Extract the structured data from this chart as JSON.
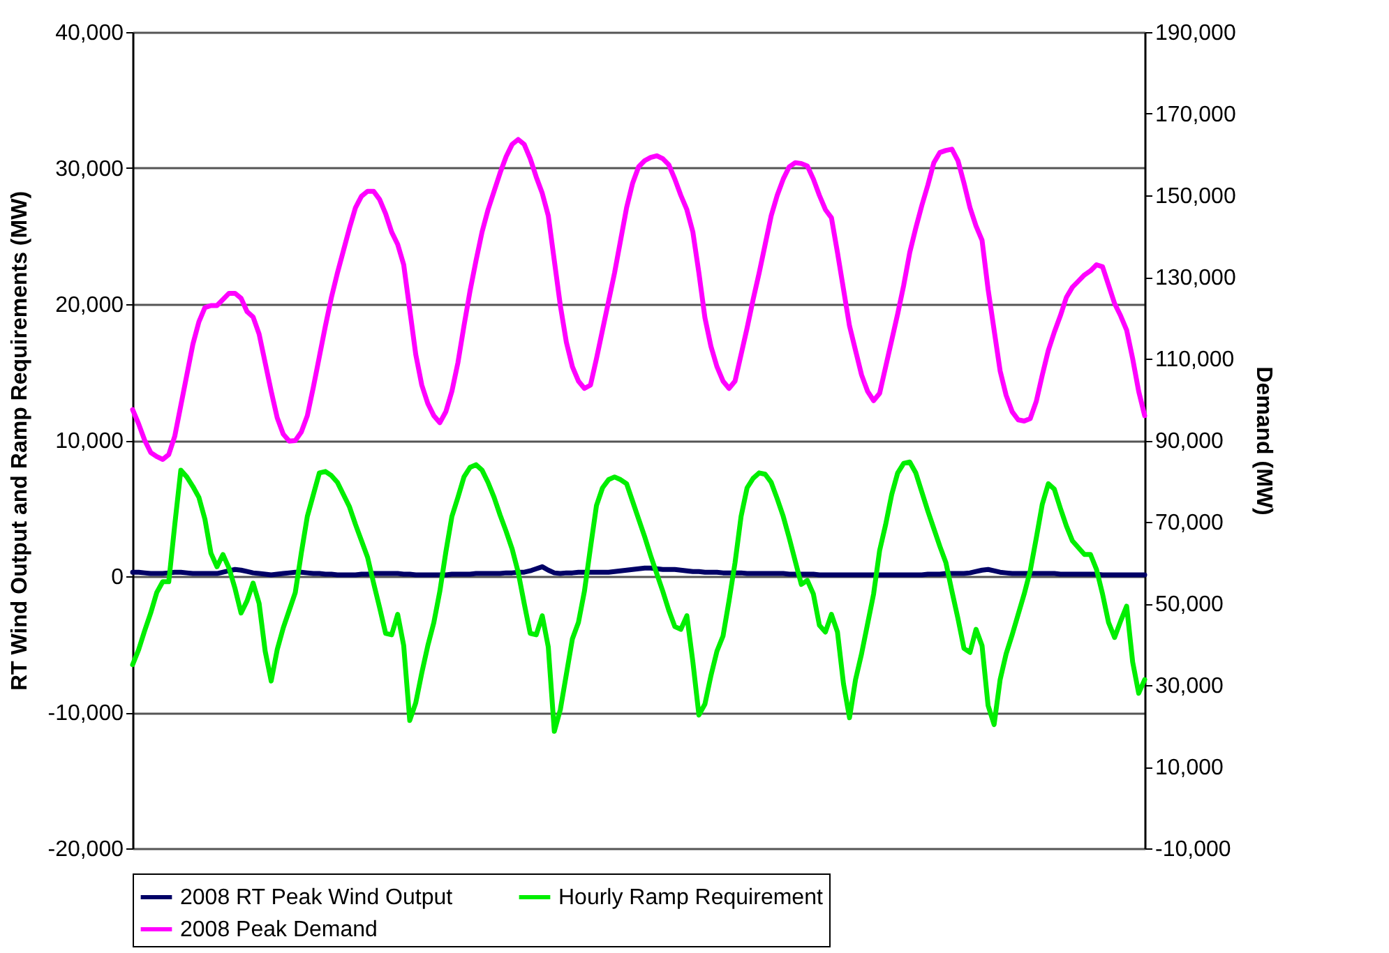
{
  "chart_data": {
    "type": "line",
    "ylabel": "RT Wind Output and Ramp Requirements (MW)",
    "y2label": "Demand (MW)",
    "categories": [
      null,
      null,
      null,
      null,
      null,
      null,
      null,
      null,
      null,
      null,
      null,
      null,
      null,
      null,
      null,
      null,
      null,
      null,
      null,
      null,
      null,
      null,
      null,
      null,
      null,
      null,
      null,
      null,
      null,
      null,
      null,
      null,
      null,
      null,
      null,
      null,
      null,
      null,
      null,
      null,
      null,
      null,
      null,
      null,
      null,
      null,
      null,
      null,
      null,
      null,
      null,
      null,
      null,
      null,
      null,
      null,
      null,
      null,
      null,
      null,
      null,
      null,
      null,
      null,
      null,
      null,
      null,
      null,
      null,
      null,
      null,
      null,
      null,
      null,
      null,
      null,
      null,
      null,
      null,
      null,
      null,
      null,
      null,
      null,
      null,
      null,
      null,
      null,
      null,
      null,
      null,
      null,
      null,
      null,
      null,
      null,
      null,
      null,
      null,
      null,
      null,
      null,
      null,
      null,
      null,
      null,
      null,
      null,
      null,
      null,
      null,
      null,
      null,
      null,
      null,
      null,
      null,
      null,
      null,
      null,
      null,
      null,
      null,
      null,
      null,
      null,
      null,
      null,
      null,
      null,
      null,
      null,
      null,
      null,
      null,
      null,
      null,
      null,
      null,
      null,
      null,
      null,
      null,
      null,
      null,
      null,
      null,
      null,
      null,
      null,
      null,
      null,
      null,
      null,
      null,
      null,
      null,
      null,
      null,
      null,
      null,
      null,
      null,
      null,
      null,
      null,
      null,
      null,
      null
    ],
    "ylim": [
      -20000,
      40000
    ],
    "yticks": [
      {
        "value": -20000,
        "label": "-20,000"
      },
      {
        "value": -10000,
        "label": "-10,000"
      },
      {
        "value": 0,
        "label": "0"
      },
      {
        "value": 10000,
        "label": "10,000"
      },
      {
        "value": 20000,
        "label": "20,000"
      },
      {
        "value": 30000,
        "label": "30,000"
      },
      {
        "value": 40000,
        "label": "40,000"
      }
    ],
    "y2lim": [
      -10000,
      190000
    ],
    "y2ticks": [
      {
        "value": -10000,
        "label": "-10,000"
      },
      {
        "value": 10000,
        "label": "10,000"
      },
      {
        "value": 30000,
        "label": "30,000"
      },
      {
        "value": 50000,
        "label": "50,000"
      },
      {
        "value": 70000,
        "label": "70,000"
      },
      {
        "value": 90000,
        "label": "90,000"
      },
      {
        "value": 110000,
        "label": "110,000"
      },
      {
        "value": 130000,
        "label": "130,000"
      },
      {
        "value": 150000,
        "label": "150,000"
      },
      {
        "value": 170000,
        "label": "170,000"
      },
      {
        "value": 190000,
        "label": "190,000"
      }
    ],
    "grid": "y",
    "legend": "bottom",
    "tick_labels": "y",
    "marker": "none",
    "line_style": "solid",
    "series": [
      {
        "name": "2008 RT Peak Wind Output",
        "color": "#000066",
        "values": [
          300,
          300,
          250,
          200,
          200,
          200,
          250,
          300,
          300,
          250,
          200,
          200,
          200,
          200,
          200,
          300,
          400,
          500,
          450,
          350,
          250,
          200,
          150,
          100,
          150,
          200,
          250,
          300,
          300,
          250,
          200,
          200,
          150,
          150,
          100,
          100,
          100,
          100,
          150,
          150,
          200,
          200,
          200,
          200,
          200,
          150,
          150,
          100,
          100,
          100,
          100,
          100,
          100,
          150,
          150,
          150,
          150,
          200,
          200,
          200,
          200,
          200,
          250,
          250,
          300,
          300,
          400,
          550,
          700,
          450,
          250,
          200,
          250,
          250,
          300,
          300,
          300,
          300,
          300,
          300,
          350,
          400,
          450,
          500,
          550,
          600,
          600,
          550,
          500,
          500,
          500,
          450,
          400,
          350,
          350,
          300,
          300,
          300,
          250,
          250,
          250,
          250,
          200,
          200,
          200,
          200,
          200,
          200,
          200,
          150,
          150,
          150,
          150,
          150,
          100,
          100,
          100,
          100,
          100,
          100,
          100,
          100,
          100,
          100,
          100,
          100,
          100,
          100,
          100,
          100,
          100,
          100,
          150,
          150,
          150,
          200,
          200,
          200,
          200,
          250,
          350,
          450,
          500,
          400,
          300,
          250,
          200,
          200,
          200,
          200,
          200,
          200,
          200,
          200,
          150,
          150,
          150,
          150,
          150,
          150,
          150,
          100,
          100,
          100,
          100,
          100,
          100,
          100,
          100
        ]
      },
      {
        "name": "Hourly Ramp Requirement",
        "color": "#00ee00",
        "values": [
          -6500,
          -5400,
          -4000,
          -2700,
          -1200,
          -400,
          -400,
          3800,
          7800,
          7300,
          6600,
          5800,
          4200,
          1700,
          700,
          1600,
          600,
          -900,
          -2700,
          -1800,
          -500,
          -2000,
          -5500,
          -7700,
          -5400,
          -3800,
          -2500,
          -1200,
          1700,
          4400,
          6000,
          7600,
          7700,
          7400,
          6900,
          6000,
          5100,
          3800,
          2600,
          1400,
          -500,
          -2300,
          -4200,
          -4300,
          -2800,
          -5100,
          -10600,
          -9300,
          -7100,
          -5100,
          -3400,
          -1100,
          1800,
          4400,
          5800,
          7300,
          8000,
          8200,
          7800,
          6900,
          5800,
          4500,
          3300,
          2000,
          300,
          -2000,
          -4200,
          -4300,
          -2900,
          -5200,
          -11400,
          -9800,
          -7200,
          -4600,
          -3400,
          -1100,
          2100,
          5200,
          6500,
          7100,
          7300,
          7100,
          6800,
          5500,
          4200,
          2900,
          1500,
          200,
          -1100,
          -2500,
          -3700,
          -3900,
          -2900,
          -6300,
          -10200,
          -9400,
          -7300,
          -5500,
          -4400,
          -1800,
          1000,
          4400,
          6500,
          7200,
          7600,
          7500,
          6900,
          5700,
          4400,
          2800,
          1100,
          -600,
          -300,
          -1300,
          -3600,
          -4100,
          -2800,
          -4100,
          -7900,
          -10400,
          -7600,
          -5700,
          -3500,
          -1300,
          1900,
          3800,
          6000,
          7600,
          8300,
          8400,
          7600,
          6200,
          4800,
          3500,
          2200,
          1000,
          -1100,
          -3100,
          -5300,
          -5600,
          -3900,
          -5100,
          -9500,
          -10900,
          -7600,
          -5700,
          -4300,
          -2800,
          -1300,
          400,
          2800,
          5300,
          6800,
          6400,
          5000,
          3700,
          2600,
          2100,
          1600,
          1600,
          500,
          -1300,
          -3400,
          -4500,
          -3300,
          -2200,
          -6300,
          -8600,
          -7600
        ]
      },
      {
        "name": "2008 Peak Demand",
        "color": "#ff00ff",
        "axis": "y2",
        "values": [
          97500,
          94000,
          90000,
          87000,
          86000,
          85300,
          86500,
          91000,
          98500,
          106000,
          113500,
          119000,
          122500,
          123000,
          123000,
          124500,
          126000,
          126000,
          124800,
          121500,
          120200,
          116000,
          109000,
          102000,
          95500,
          91500,
          89800,
          89900,
          92000,
          96000,
          103000,
          110500,
          118000,
          125000,
          131000,
          136500,
          142000,
          147000,
          149800,
          151000,
          151000,
          149000,
          145500,
          141000,
          138000,
          133000,
          122000,
          111000,
          103500,
          99000,
          96000,
          94300,
          97000,
          102000,
          109000,
          118000,
          126500,
          134000,
          141000,
          146500,
          151000,
          155500,
          159500,
          162500,
          163700,
          162500,
          159000,
          154500,
          150500,
          145000,
          134000,
          123000,
          114000,
          108000,
          104500,
          102700,
          103500,
          110000,
          117000,
          124000,
          131000,
          139000,
          147000,
          153000,
          157000,
          158500,
          159300,
          159700,
          159000,
          157500,
          154000,
          150000,
          146500,
          141000,
          131000,
          120000,
          113000,
          108000,
          104500,
          102700,
          104500,
          111000,
          117500,
          124500,
          131000,
          138000,
          145000,
          150000,
          154000,
          157000,
          158000,
          157800,
          157200,
          154000,
          150000,
          146500,
          144500,
          136000,
          127000,
          118000,
          112000,
          106000,
          102000,
          99700,
          101500,
          108000,
          114500,
          121000,
          128000,
          136000,
          142000,
          147500,
          152500,
          158000,
          160500,
          161000,
          161300,
          158500,
          153000,
          147000,
          142500,
          139000,
          127000,
          117000,
          107000,
          101000,
          97000,
          95000,
          94700,
          95300,
          99500,
          106000,
          112000,
          116500,
          120500,
          125000,
          127500,
          129000,
          130500,
          131500,
          133000,
          132500,
          128000,
          123500,
          120500,
          117000,
          110000,
          102000,
          96000
        ]
      }
    ]
  }
}
